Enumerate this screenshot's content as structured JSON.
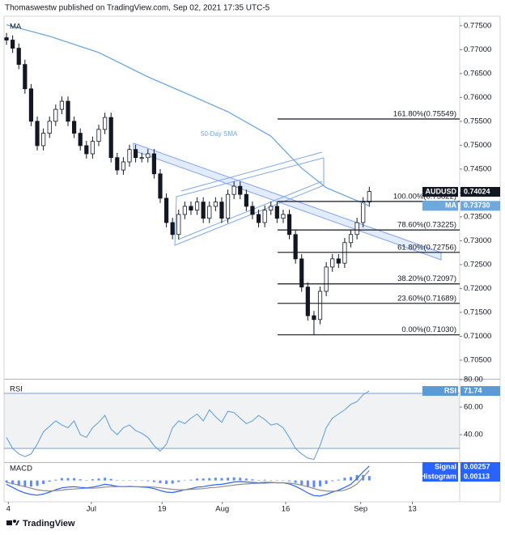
{
  "header": "Thomaswestw published on TradingView.com, Sep 02, 2021 17:35 UTC-5",
  "footer": "TradingView",
  "chart_data": [
    {
      "type": "candlestick",
      "title": "MA",
      "symbol": "AUDUSD",
      "last_price": 0.74024,
      "annotation": "50-Day SMA",
      "up_color": "#ffffff",
      "down_color": "#131722",
      "x": [
        0,
        1,
        2,
        3,
        4,
        5,
        6,
        7,
        8,
        9,
        10,
        11,
        12,
        13,
        14,
        15,
        16,
        17,
        18,
        19,
        20,
        21,
        22,
        23,
        24,
        25,
        26,
        27,
        28,
        29,
        30,
        31,
        32,
        33,
        34,
        35,
        36,
        37,
        38,
        39,
        40,
        41,
        42,
        43,
        44,
        45,
        46,
        47,
        48,
        49,
        50,
        51,
        52,
        53,
        54,
        55,
        56,
        57,
        58,
        59
      ],
      "open": [
        0.7725,
        0.772,
        0.7703,
        0.7669,
        0.7618,
        0.755,
        0.7499,
        0.7525,
        0.755,
        0.7575,
        0.7592,
        0.755,
        0.7525,
        0.7499,
        0.7482,
        0.7508,
        0.7533,
        0.7558,
        0.7474,
        0.7448,
        0.7465,
        0.7491,
        0.7474,
        0.7474,
        0.7482,
        0.744,
        0.7389,
        0.7338,
        0.7313,
        0.7355,
        0.7372,
        0.7364,
        0.7381,
        0.7347,
        0.7372,
        0.7381,
        0.7347,
        0.7397,
        0.7414,
        0.7397,
        0.7372,
        0.7355,
        0.7338,
        0.7364,
        0.7372,
        0.7347,
        0.7355,
        0.7313,
        0.7262,
        0.7203,
        0.7143,
        0.7135,
        0.7194,
        0.7245,
        0.7262,
        0.7253,
        0.7296,
        0.7313,
        0.7338,
        0.7381
      ],
      "high": [
        0.7735,
        0.773,
        0.7713,
        0.7679,
        0.7628,
        0.756,
        0.7535,
        0.756,
        0.7585,
        0.7602,
        0.7602,
        0.756,
        0.7535,
        0.7509,
        0.7518,
        0.7543,
        0.7568,
        0.7568,
        0.7484,
        0.7475,
        0.7501,
        0.7501,
        0.7484,
        0.7492,
        0.7492,
        0.745,
        0.7399,
        0.7348,
        0.7365,
        0.7382,
        0.7382,
        0.7391,
        0.7391,
        0.7382,
        0.7391,
        0.7391,
        0.7407,
        0.7424,
        0.7424,
        0.7407,
        0.7382,
        0.7365,
        0.7374,
        0.7382,
        0.7382,
        0.7365,
        0.7365,
        0.7323,
        0.7272,
        0.7213,
        0.7153,
        0.7204,
        0.7255,
        0.7272,
        0.7272,
        0.7306,
        0.7323,
        0.7348,
        0.7391,
        0.7413
      ],
      "low": [
        0.771,
        0.7693,
        0.7659,
        0.7608,
        0.754,
        0.7489,
        0.7489,
        0.7515,
        0.754,
        0.7565,
        0.754,
        0.7515,
        0.7489,
        0.7472,
        0.7472,
        0.7498,
        0.7523,
        0.7464,
        0.7438,
        0.7438,
        0.7455,
        0.7464,
        0.7464,
        0.7464,
        0.743,
        0.7379,
        0.7328,
        0.7303,
        0.7303,
        0.7345,
        0.7354,
        0.7354,
        0.7337,
        0.7337,
        0.7362,
        0.7337,
        0.7337,
        0.7387,
        0.7387,
        0.7362,
        0.7345,
        0.7328,
        0.7328,
        0.7354,
        0.7337,
        0.7337,
        0.7303,
        0.7252,
        0.7193,
        0.7133,
        0.7103,
        0.7125,
        0.7184,
        0.7235,
        0.7243,
        0.7243,
        0.7286,
        0.7303,
        0.7328,
        0.7371
      ],
      "close": [
        0.772,
        0.7703,
        0.7669,
        0.7618,
        0.755,
        0.7499,
        0.7525,
        0.755,
        0.7575,
        0.7592,
        0.755,
        0.7525,
        0.7499,
        0.7482,
        0.7508,
        0.7533,
        0.7558,
        0.7474,
        0.7448,
        0.7465,
        0.7491,
        0.7474,
        0.7474,
        0.7482,
        0.744,
        0.7389,
        0.7338,
        0.7313,
        0.7355,
        0.7372,
        0.7364,
        0.7381,
        0.7347,
        0.7372,
        0.7381,
        0.7347,
        0.7397,
        0.7414,
        0.7397,
        0.7372,
        0.7355,
        0.7338,
        0.7364,
        0.7372,
        0.7347,
        0.7355,
        0.7313,
        0.7262,
        0.7203,
        0.7143,
        0.7135,
        0.7194,
        0.7245,
        0.7262,
        0.7253,
        0.7296,
        0.7313,
        0.7338,
        0.7381,
        0.7403
      ],
      "ma": {
        "name": "MA",
        "color": "#6fa8dc",
        "x": [
          0,
          7,
          15,
          23,
          30,
          36,
          43,
          48,
          52,
          59
        ],
        "values": [
          0.7752,
          0.7728,
          0.7694,
          0.7643,
          0.7604,
          0.757,
          0.7519,
          0.7452,
          0.7411,
          0.7373
        ],
        "last": {
          "value": 0.7373,
          "label": "0.73730"
        }
      },
      "fib_levels": [
        {
          "value": 0.75549,
          "label": "161.80%(0.75549)"
        },
        {
          "value": 0.73822,
          "label": "100.00%(0.73822)"
        },
        {
          "value": 0.73225,
          "label": "78.60%(0.73225)"
        },
        {
          "value": 0.72756,
          "label": "61.80%(0.72756)"
        },
        {
          "value": 0.72097,
          "label": "38.20%(0.72097)"
        },
        {
          "value": 0.71689,
          "label": "23.60%(0.71689)"
        },
        {
          "value": 0.7103,
          "label": "0.00%(0.71030)"
        }
      ],
      "xlim": [
        -0.4,
        73.7
      ],
      "ylim": [
        0.7011,
        0.777
      ],
      "yticks": [
        {
          "value": 0.775,
          "label": "0.77500"
        },
        {
          "value": 0.77,
          "label": "0.77000"
        },
        {
          "value": 0.765,
          "label": "0.76500"
        },
        {
          "value": 0.76,
          "label": "0.76000"
        },
        {
          "value": 0.755,
          "label": "0.75500"
        },
        {
          "value": 0.75,
          "label": "0.75000"
        },
        {
          "value": 0.745,
          "label": "0.74500"
        },
        {
          "value": 0.74,
          "label": "0.74000"
        },
        {
          "value": 0.735,
          "label": "0.73500"
        },
        {
          "value": 0.73,
          "label": "0.73000"
        },
        {
          "value": 0.725,
          "label": "0.72500"
        },
        {
          "value": 0.72,
          "label": "0.72000"
        },
        {
          "value": 0.715,
          "label": "0.71500"
        },
        {
          "value": 0.71,
          "label": "0.71000"
        },
        {
          "value": 0.705,
          "label": "0.70500"
        }
      ]
    },
    {
      "type": "line",
      "title": "RSI",
      "x": [
        0,
        1,
        2,
        3,
        4,
        5,
        6,
        7,
        8,
        9,
        10,
        11,
        12,
        13,
        14,
        15,
        16,
        17,
        18,
        19,
        20,
        21,
        22,
        23,
        24,
        25,
        26,
        27,
        28,
        29,
        30,
        31,
        32,
        33,
        34,
        35,
        36,
        37,
        38,
        39,
        40,
        41,
        42,
        43,
        44,
        45,
        46,
        47,
        48,
        49,
        50,
        51,
        52,
        53,
        54,
        55,
        56,
        57,
        58,
        59
      ],
      "series": [
        {
          "name": "RSI",
          "color": "#5b9bd5",
          "values": [
            38,
            30,
            26,
            24,
            26,
            33,
            42,
            46,
            50,
            47,
            45,
            50,
            40,
            38,
            45,
            49,
            54,
            44,
            40,
            45,
            47,
            43,
            41,
            38,
            32,
            28,
            33,
            45,
            50,
            48,
            52,
            55,
            50,
            58,
            53,
            49,
            57,
            56,
            52,
            48,
            50,
            54,
            51,
            47,
            48,
            45,
            38,
            30,
            26,
            23,
            22,
            32,
            45,
            52,
            55,
            58,
            62,
            64,
            69,
            71.74
          ]
        }
      ],
      "levels": [
        70,
        30
      ],
      "xlim": [
        -0.4,
        73.7
      ],
      "ylim": [
        20,
        80
      ],
      "yticks": [
        {
          "value": 80,
          "label": "80.00"
        },
        {
          "value": 60,
          "label": "60.00"
        },
        {
          "value": 40,
          "label": "40.00"
        }
      ]
    },
    {
      "type": "macd",
      "title": "MACD",
      "x": [
        0,
        1,
        2,
        3,
        4,
        5,
        6,
        7,
        8,
        9,
        10,
        11,
        12,
        13,
        14,
        15,
        16,
        17,
        18,
        19,
        20,
        21,
        22,
        23,
        24,
        25,
        26,
        27,
        28,
        29,
        30,
        31,
        32,
        33,
        34,
        35,
        36,
        37,
        38,
        39,
        40,
        41,
        42,
        43,
        44,
        45,
        46,
        47,
        48,
        49,
        50,
        51,
        52,
        53,
        54,
        55,
        56,
        57,
        58,
        59
      ],
      "series": [
        {
          "color": "#2962ff",
          "values": [
            -0.001,
            -0.0018,
            -0.0026,
            -0.0032,
            -0.0036,
            -0.0038,
            -0.0035,
            -0.003,
            -0.0024,
            -0.0019,
            -0.0017,
            -0.0016,
            -0.0018,
            -0.0019,
            -0.0017,
            -0.0014,
            -0.001,
            -0.0012,
            -0.0015,
            -0.0016,
            -0.0015,
            -0.0016,
            -0.0017,
            -0.0018,
            -0.0021,
            -0.0026,
            -0.003,
            -0.0031,
            -0.0028,
            -0.0024,
            -0.0021,
            -0.0017,
            -0.0016,
            -0.0013,
            -0.0011,
            -0.001,
            -0.0007,
            -0.0004,
            -0.0003,
            -0.0004,
            -0.0005,
            -0.0006,
            -0.0005,
            -0.0005,
            -0.0006,
            -0.0006,
            -0.0009,
            -0.0015,
            -0.0023,
            -0.0032,
            -0.0039,
            -0.004,
            -0.0036,
            -0.003,
            -0.0025,
            -0.0018,
            -0.001,
            0.0005,
            0.0022,
            0.0037
          ]
        },
        {
          "name": "Signal",
          "color": "#8c8c8c",
          "values": [
            -0.0005,
            -0.0008,
            -0.0012,
            -0.0016,
            -0.002,
            -0.0024,
            -0.0026,
            -0.0027,
            -0.0026,
            -0.0025,
            -0.0023,
            -0.0022,
            -0.0021,
            -0.002,
            -0.002,
            -0.0019,
            -0.0017,
            -0.0016,
            -0.0016,
            -0.0016,
            -0.0016,
            -0.0016,
            -0.0016,
            -0.0016,
            -0.0017,
            -0.0019,
            -0.0021,
            -0.0023,
            -0.0024,
            -0.0024,
            -0.0023,
            -0.0022,
            -0.0021,
            -0.0019,
            -0.0018,
            -0.0016,
            -0.0014,
            -0.0012,
            -0.001,
            -0.0009,
            -0.0008,
            -0.0007,
            -0.0007,
            -0.0006,
            -0.0006,
            -0.0006,
            -0.0007,
            -0.0009,
            -0.0012,
            -0.0016,
            -0.0021,
            -0.0025,
            -0.0027,
            -0.0028,
            -0.0027,
            -0.0025,
            -0.0019,
            -0.0009,
            0.0008,
            0.00257
          ]
        }
      ],
      "histogram": {
        "name": "Histogram",
        "color": "#2962ff",
        "values": [
          -0.0005,
          -0.001,
          -0.0014,
          -0.0016,
          -0.0016,
          -0.0014,
          -0.0009,
          -0.0003,
          0.0002,
          0.0006,
          0.0006,
          0.0006,
          0.0003,
          0.0001,
          0.0003,
          0.0005,
          0.0007,
          0.0004,
          0.0001,
          0.0,
          0.0001,
          0.0,
          -0.0001,
          -0.0002,
          -0.0004,
          -0.0007,
          -0.0009,
          -0.0008,
          -0.0004,
          0.0,
          0.0002,
          0.0005,
          0.0005,
          0.0006,
          0.0007,
          0.0006,
          0.0007,
          0.0008,
          0.0007,
          0.0005,
          0.0003,
          0.0001,
          0.0002,
          0.0001,
          0.0,
          0.0,
          -0.0002,
          -0.0006,
          -0.0011,
          -0.0016,
          -0.0018,
          -0.0015,
          -0.0009,
          -0.0002,
          0.0002,
          0.0007,
          0.0009,
          0.0014,
          0.0014,
          0.00113
        ]
      },
      "xlim": [
        -0.4,
        73.7
      ],
      "ylim": [
        -0.0055,
        0.0045
      ],
      "xticks": [
        {
          "value": 0.3,
          "label": "4"
        },
        {
          "value": 13.8,
          "label": "Jul"
        },
        {
          "value": 25.3,
          "label": "19"
        },
        {
          "value": 35.1,
          "label": "Aug"
        },
        {
          "value": 45.4,
          "label": "16"
        },
        {
          "value": 57.6,
          "label": "Sep"
        },
        {
          "value": 66,
          "label": "13"
        }
      ]
    }
  ]
}
